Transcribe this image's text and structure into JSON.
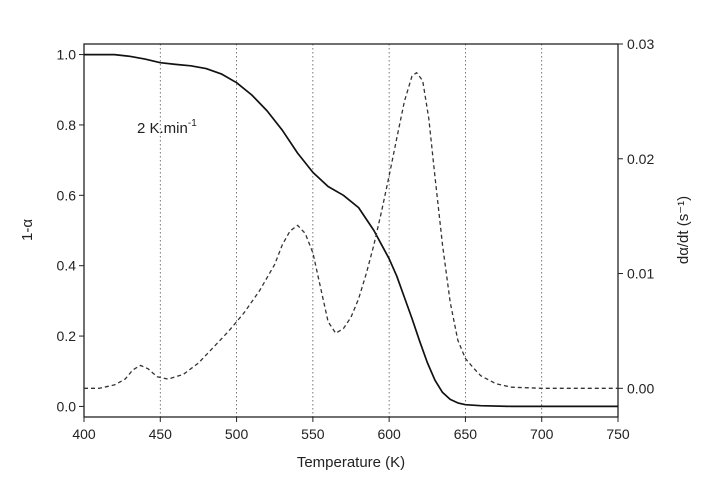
{
  "chart_data": {
    "type": "line",
    "xlabel": "Temperature (K)",
    "ylabel_left": "1-α",
    "ylabel_right": "dα/dt (s⁻¹)",
    "annotation": "2 K.min",
    "annotation_superscript": "-1",
    "xlim": [
      400,
      750
    ],
    "ylim_left": [
      -0.03,
      1.03
    ],
    "ylim_right": [
      -0.0025,
      0.03
    ],
    "x_ticks": [
      400,
      450,
      500,
      550,
      600,
      650,
      700,
      750
    ],
    "y_left_ticks": [
      "0.0",
      "0.2",
      "0.4",
      "0.6",
      "0.8",
      "1.0"
    ],
    "y_right_ticks": [
      "0.00",
      "0.01",
      "0.02",
      "0.03"
    ],
    "grid": "vertical dotted at x ticks",
    "series": [
      {
        "axis": "left",
        "style": "solid",
        "color": "#111111",
        "x": [
          400,
          420,
          430,
          440,
          450,
          460,
          470,
          480,
          490,
          500,
          510,
          520,
          530,
          540,
          550,
          560,
          570,
          580,
          590,
          600,
          605,
          610,
          615,
          620,
          625,
          630,
          635,
          640,
          645,
          650,
          660,
          680,
          700,
          750
        ],
        "y": [
          1.0,
          1.0,
          0.995,
          0.987,
          0.977,
          0.972,
          0.968,
          0.96,
          0.945,
          0.92,
          0.885,
          0.84,
          0.785,
          0.72,
          0.665,
          0.625,
          0.6,
          0.565,
          0.5,
          0.42,
          0.37,
          0.31,
          0.25,
          0.185,
          0.125,
          0.075,
          0.04,
          0.02,
          0.01,
          0.005,
          0.002,
          0.0,
          0.0,
          0.0
        ]
      },
      {
        "axis": "right",
        "style": "dashed",
        "color": "#333333",
        "x": [
          400,
          410,
          420,
          427,
          432,
          437,
          442,
          448,
          455,
          465,
          475,
          485,
          495,
          505,
          515,
          525,
          530,
          535,
          540,
          545,
          550,
          555,
          560,
          565,
          570,
          575,
          580,
          585,
          590,
          595,
          600,
          605,
          610,
          615,
          618,
          622,
          626,
          630,
          635,
          640,
          645,
          650,
          655,
          660,
          670,
          680,
          700,
          750
        ],
        "y": [
          0.0,
          0.0,
          0.0003,
          0.0008,
          0.0016,
          0.002,
          0.0017,
          0.001,
          0.0008,
          0.0012,
          0.0022,
          0.0036,
          0.005,
          0.0066,
          0.0085,
          0.0108,
          0.0125,
          0.0137,
          0.0142,
          0.0135,
          0.0118,
          0.0088,
          0.0058,
          0.0048,
          0.0052,
          0.0062,
          0.0078,
          0.01,
          0.0125,
          0.0154,
          0.0185,
          0.0218,
          0.025,
          0.0272,
          0.0275,
          0.0268,
          0.0235,
          0.0185,
          0.0125,
          0.0075,
          0.0042,
          0.0026,
          0.0018,
          0.0011,
          0.0004,
          0.0001,
          0.0,
          0.0
        ]
      }
    ]
  }
}
